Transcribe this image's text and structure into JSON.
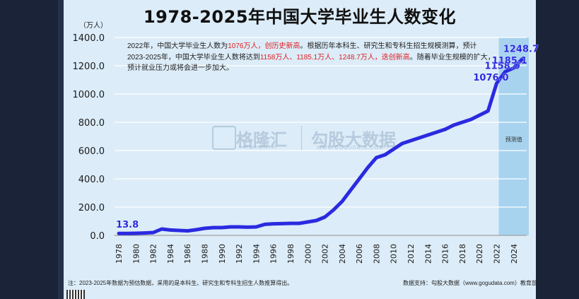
{
  "chart_data": {
    "type": "line",
    "title": "1978-2025年中国大学毕业生人数变化",
    "unit_label": "（万人）",
    "ylim": [
      0,
      1400
    ],
    "yticks": [
      "0.0",
      "200.0",
      "400.0",
      "600.0",
      "800.0",
      "1000.0",
      "1200.0",
      "1400.0"
    ],
    "ytick_values": [
      0,
      200,
      400,
      600,
      800,
      1000,
      1200,
      1400
    ],
    "x": [
      1978,
      1979,
      1980,
      1981,
      1982,
      1983,
      1984,
      1985,
      1986,
      1987,
      1988,
      1989,
      1990,
      1991,
      1992,
      1993,
      1994,
      1995,
      1996,
      1997,
      1998,
      1999,
      2000,
      2001,
      2002,
      2003,
      2004,
      2005,
      2006,
      2007,
      2008,
      2009,
      2010,
      2011,
      2012,
      2013,
      2014,
      2015,
      2016,
      2017,
      2018,
      2019,
      2020,
      2021,
      2022,
      2023,
      2024,
      2025
    ],
    "xticks": [
      "1978",
      "1980",
      "1982",
      "1984",
      "1986",
      "1988",
      "1990",
      "1992",
      "1994",
      "1996",
      "1998",
      "2000",
      "2002",
      "2004",
      "2006",
      "2008",
      "2010",
      "2012",
      "2014",
      "2016",
      "2018",
      "2020",
      "2022",
      "2024"
    ],
    "xtick_values": [
      1978,
      1980,
      1982,
      1984,
      1986,
      1988,
      1990,
      1992,
      1994,
      1996,
      1998,
      2000,
      2002,
      2004,
      2006,
      2008,
      2010,
      2012,
      2014,
      2016,
      2018,
      2020,
      2022,
      2024
    ],
    "xticks_minor": [
      "1979",
      "1981",
      "1983",
      "1985",
      "1987",
      "1989",
      "1991",
      "1993",
      "1995",
      "1997",
      "1999",
      "2001",
      "2003",
      "2005",
      "2007",
      "2009",
      "2011",
      "2013",
      "2015",
      "2017",
      "2019",
      "2021",
      "2023",
      "2025"
    ],
    "xtick_minor_values": [
      1979,
      1981,
      1983,
      1985,
      1987,
      1989,
      1991,
      1993,
      1995,
      1997,
      1999,
      2001,
      2003,
      2005,
      2007,
      2009,
      2011,
      2013,
      2015,
      2017,
      2019,
      2021,
      2023,
      2025
    ],
    "values": [
      13.8,
      14,
      15,
      17,
      20,
      45,
      38,
      35,
      32,
      40,
      50,
      55,
      55,
      60,
      60,
      58,
      60,
      78,
      82,
      83,
      85,
      85,
      95,
      105,
      130,
      180,
      240,
      320,
      400,
      480,
      550,
      570,
      610,
      650,
      670,
      690,
      710,
      730,
      750,
      780,
      800,
      820,
      850,
      880,
      1076,
      1158,
      1185.1,
      1248.7
    ],
    "data_labels": [
      {
        "x": 1978,
        "value": 13.8,
        "text": "13.8"
      },
      {
        "x": 2022,
        "value": 1076,
        "text": "1076.0"
      },
      {
        "x": 2023,
        "value": 1158,
        "text": "1158.0"
      },
      {
        "x": 2024,
        "value": 1185.1,
        "text": "1185.1"
      },
      {
        "x": 2025,
        "value": 1248.7,
        "text": "1248.7"
      }
    ],
    "forecast_range": [
      2023,
      2025
    ],
    "forecast_label": "预测值",
    "line_color": "#2a2ae0",
    "forecast_color": "#a7d3ef",
    "grid": true
  },
  "note": {
    "p1": "2022年，中国大学毕业生人数为",
    "r1": "1076万人，创历史新高",
    "p2": "。根据历年本科生、研究生和专科生招生规模测算，预计2023-2025年，中国大学毕业生人数将达到",
    "r2": "1158万人、1185.1万人、1248.7万人，迭创新高",
    "p3": "。随着毕业生规模的扩大，预计就业压力或将会进一步加大。"
  },
  "footnote": "注：2023-2025年数据为预估数据，采用的是本科生、研究生和专科生招生人数推算得出。",
  "source": "数据支持：勾股大数据（www.gogudata.com）教育部",
  "watermark": {
    "brand1": "格隆汇",
    "brand1_sub": "www.gelonghui.com",
    "brand2": "勾股大数据",
    "brand2_sub": "WWW.GOGUDATA.COM"
  }
}
